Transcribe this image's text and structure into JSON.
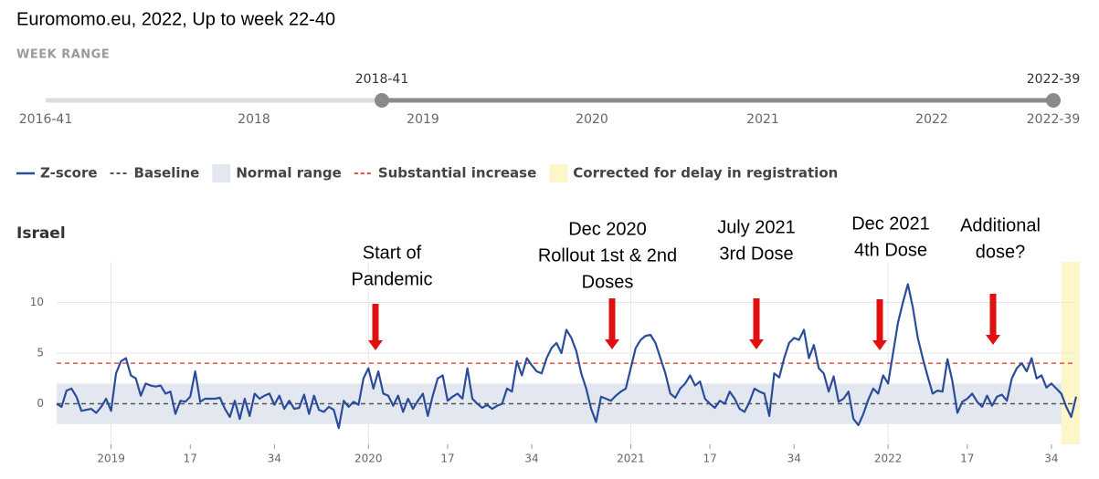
{
  "header": {
    "title": "Euromomo.eu, 2022, Up to week 22-40"
  },
  "week_range": {
    "label": "WEEK RANGE",
    "start": "2018-41",
    "end": "2022-39",
    "axis_labels": [
      "2016-41",
      "2018",
      "2019",
      "2020",
      "2021",
      "2022",
      "2022-39"
    ]
  },
  "chart_data": {
    "type": "line",
    "title": "Israel",
    "categories": [
      null,
      null,
      null,
      null,
      null,
      null,
      null,
      null,
      null,
      null,
      null,
      "2019",
      null,
      null,
      null,
      null,
      null,
      null,
      null,
      null,
      null,
      null,
      null,
      null,
      null,
      null,
      null,
      "17",
      null,
      null,
      null,
      null,
      null,
      null,
      null,
      null,
      null,
      null,
      null,
      null,
      null,
      null,
      null,
      null,
      "34",
      null,
      null,
      null,
      null,
      null,
      null,
      null,
      null,
      null,
      null,
      null,
      null,
      null,
      null,
      null,
      null,
      null,
      null,
      "2020",
      null,
      null,
      null,
      null,
      null,
      null,
      null,
      null,
      null,
      null,
      null,
      null,
      null,
      null,
      null,
      "17",
      null,
      null,
      null,
      null,
      null,
      null,
      null,
      null,
      null,
      null,
      null,
      null,
      null,
      null,
      null,
      null,
      "34",
      null,
      null,
      null,
      null,
      null,
      null,
      null,
      null,
      null,
      null,
      null,
      null,
      null,
      null,
      null,
      null,
      null,
      null,
      null,
      "2021",
      null,
      null,
      null,
      null,
      null,
      null,
      null,
      null,
      null,
      null,
      null,
      null,
      null,
      null,
      null,
      "17",
      null,
      null,
      null,
      null,
      null,
      null,
      null,
      null,
      null,
      null,
      null,
      null,
      null,
      null,
      null,
      null,
      "34",
      null,
      null,
      null,
      null,
      null,
      null,
      null,
      null,
      null,
      null,
      null,
      null,
      null,
      null,
      null,
      null,
      null,
      null,
      "2022",
      null,
      null,
      null,
      null,
      null,
      null,
      null,
      null,
      null,
      null,
      null,
      null,
      null,
      null,
      null,
      "17",
      null,
      null,
      null,
      null,
      null,
      null,
      null,
      null,
      null,
      null,
      null,
      null,
      null,
      null,
      null,
      null,
      "34",
      null,
      null,
      null,
      null,
      null
    ],
    "series": [
      {
        "name": "Z-score",
        "color": "#2b4c9b",
        "values": [
          0,
          -0.3,
          1.3,
          1.5,
          0.7,
          -0.7,
          -0.6,
          -0.5,
          -0.9,
          -0.3,
          0.5,
          -0.7,
          3.0,
          4.2,
          4.5,
          2.8,
          2.5,
          0.8,
          2.0,
          1.8,
          1.7,
          1.8,
          1.0,
          1.2,
          -1.0,
          0.3,
          0.2,
          0.7,
          3.2,
          0.2,
          0.5,
          0.5,
          0.5,
          0.6,
          -0.5,
          -1.3,
          0.3,
          -1.5,
          0.5,
          -1.2,
          1.0,
          0.5,
          0.8,
          1.0,
          -0.1,
          0.8,
          -0.5,
          0.3,
          -0.5,
          -0.4,
          0.9,
          -1.0,
          0.8,
          -0.6,
          -0.8,
          -0.3,
          -0.6,
          -2.4,
          0.3,
          -0.3,
          0.2,
          -0.1,
          2.5,
          3.5,
          1.5,
          3.2,
          1.0,
          0.8,
          -0.2,
          0.8,
          -0.8,
          0.5,
          -0.5,
          0.3,
          1.0,
          -1.2,
          0.8,
          2.5,
          2.8,
          0.3,
          0.7,
          1.0,
          0.5,
          3.5,
          0.5,
          0,
          -0.4,
          -0.1,
          -0.5,
          -0.2,
          0,
          1.5,
          1.2,
          4.2,
          2.8,
          4.5,
          3.8,
          3.2,
          3.0,
          4.5,
          5.5,
          6.0,
          5.0,
          7.3,
          6.5,
          5.2,
          3.0,
          1.5,
          -0.5,
          -1.8,
          0.7,
          0.5,
          0.3,
          0.8,
          1.2,
          1.5,
          3.5,
          5.5,
          6.3,
          6.7,
          6.8,
          6.0,
          4.5,
          3.0,
          1.0,
          0.6,
          1.5,
          2.0,
          2.8,
          1.8,
          2.2,
          0.5,
          0,
          -0.4,
          0.3,
          0,
          1.2,
          0.5,
          -0.5,
          -0.8,
          0.2,
          1.5,
          1.2,
          1.0,
          -1.2,
          3.0,
          2.6,
          4.5,
          6.0,
          6.5,
          6.3,
          7.3,
          4.5,
          5.8,
          3.5,
          3.0,
          1.2,
          2.7,
          0.2,
          0.5,
          1.2,
          -1.5,
          -2.1,
          -1.0,
          0.4,
          1.5,
          1.0,
          2.8,
          2.0,
          5.0,
          8.0,
          10.0,
          11.8,
          9.5,
          6.5,
          4.5,
          2.7,
          1.0,
          1.3,
          1.2,
          4.4,
          2.2,
          -0.9,
          0.2,
          0.5,
          1.0,
          0.2,
          -0.3,
          0.8,
          -0.2,
          0.7,
          0.9,
          0.3,
          2.5,
          3.5,
          4.0,
          3.2,
          4.5,
          2.5,
          2.8,
          1.6,
          2.0,
          1.5,
          1.0,
          -0.3,
          -1.3,
          0.7
        ]
      }
    ],
    "reference_lines": [
      {
        "name": "Baseline",
        "value": 0,
        "color": "#555555"
      },
      {
        "name": "Substantial increase",
        "value": 4,
        "color": "#e8504a"
      }
    ],
    "bands": [
      {
        "name": "Normal range",
        "range": [
          -2,
          2
        ],
        "color": "#e3e8f0"
      }
    ],
    "delay_band": {
      "name": "Corrected for delay in registration",
      "color": "#fdf6c8"
    },
    "ylim": [
      -4,
      14
    ],
    "yticks": [
      0,
      5,
      10
    ],
    "grid": true,
    "annotations": [
      {
        "lines": [
          "Start of",
          "Pandemic"
        ]
      },
      {
        "lines": [
          "Dec 2020",
          "Rollout 1st & 2nd",
          "Doses"
        ]
      },
      {
        "lines": [
          "July 2021",
          "3rd Dose"
        ]
      },
      {
        "lines": [
          "Dec 2021",
          "4th Dose"
        ]
      },
      {
        "lines": [
          "Additional",
          "dose?"
        ]
      }
    ],
    "arrow_color": "#e01010"
  }
}
